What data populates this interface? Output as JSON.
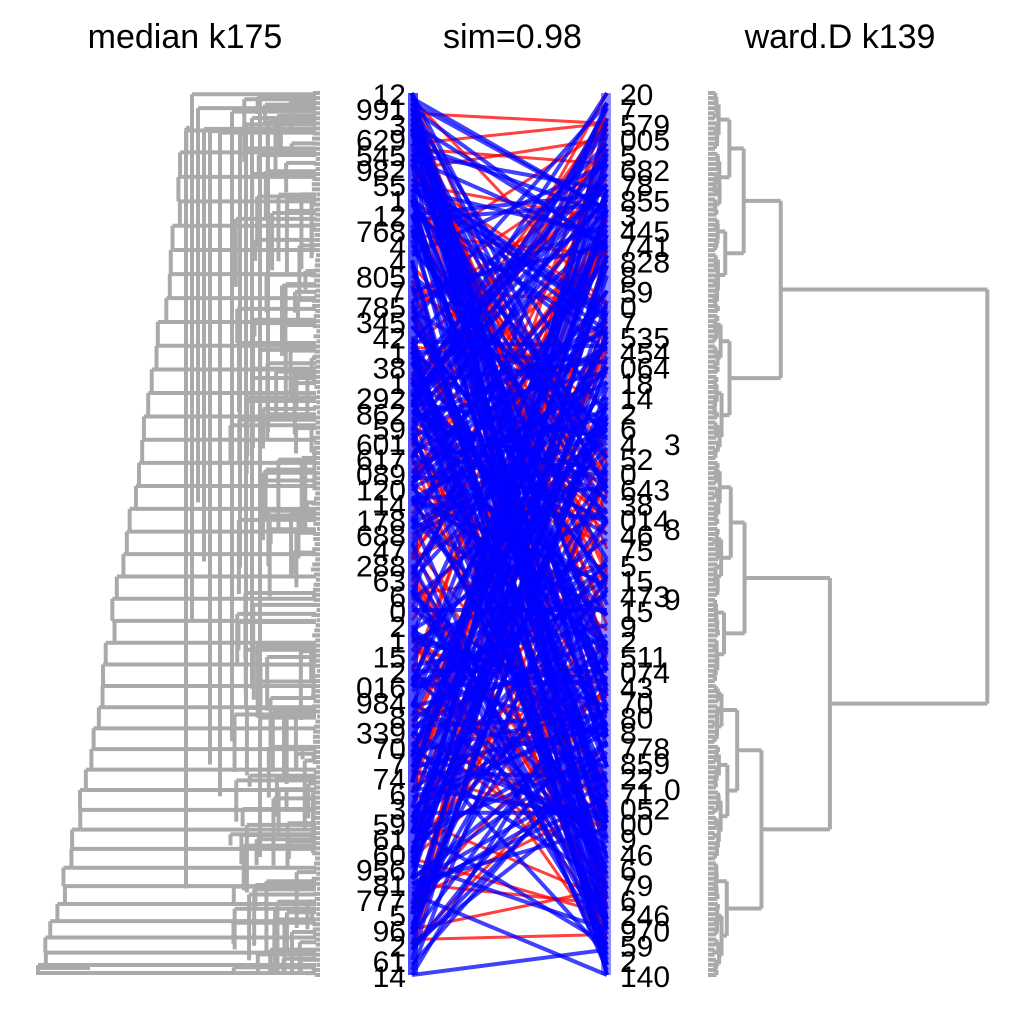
{
  "chart_data": {
    "type": "tanglegram",
    "similarity_label": "sim=0.98",
    "left_tree": {
      "title": "median k175",
      "color": "#aaaaaa",
      "leaf_label_samples": [
        "12",
        "9",
        "4",
        "14"
      ]
    },
    "right_tree": {
      "title": "ward.D k139",
      "color": "#aaaaaa",
      "leaf_label_samples": [
        "20",
        "3",
        "8",
        "140"
      ]
    },
    "connectors": {
      "colors": {
        "common": "#0000ff",
        "distinct": "#ff0000"
      },
      "dominant": "common"
    }
  }
}
